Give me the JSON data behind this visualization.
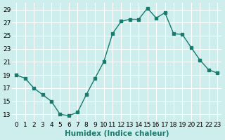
{
  "x": [
    0,
    1,
    2,
    3,
    4,
    5,
    6,
    7,
    8,
    9,
    10,
    11,
    12,
    13,
    14,
    15,
    16,
    17,
    18,
    19,
    20,
    21,
    22,
    23
  ],
  "y": [
    19,
    18.5,
    17,
    16,
    15,
    13,
    12.8,
    13.3,
    16,
    18.5,
    21,
    25.3,
    27.2,
    27.5,
    27.5,
    29.2,
    27.7,
    28.5,
    25.3,
    25.2,
    23.2,
    21.3,
    19.8,
    19.3
  ],
  "line_color": "#1a7a6e",
  "marker_color": "#1a7a6e",
  "bg_color": "#ceeeed",
  "grid_color": "#ffffff",
  "xlabel": "Humidex (Indice chaleur)",
  "xlim": [
    -0.5,
    23.5
  ],
  "ylim": [
    12,
    30
  ],
  "yticks": [
    13,
    15,
    17,
    19,
    21,
    23,
    25,
    27,
    29
  ],
  "xticks": [
    0,
    1,
    2,
    3,
    4,
    5,
    6,
    7,
    8,
    9,
    10,
    11,
    12,
    13,
    14,
    15,
    16,
    17,
    18,
    19,
    20,
    21,
    22,
    23
  ],
  "fontsize_label": 7.5,
  "fontsize_tick": 6.5
}
